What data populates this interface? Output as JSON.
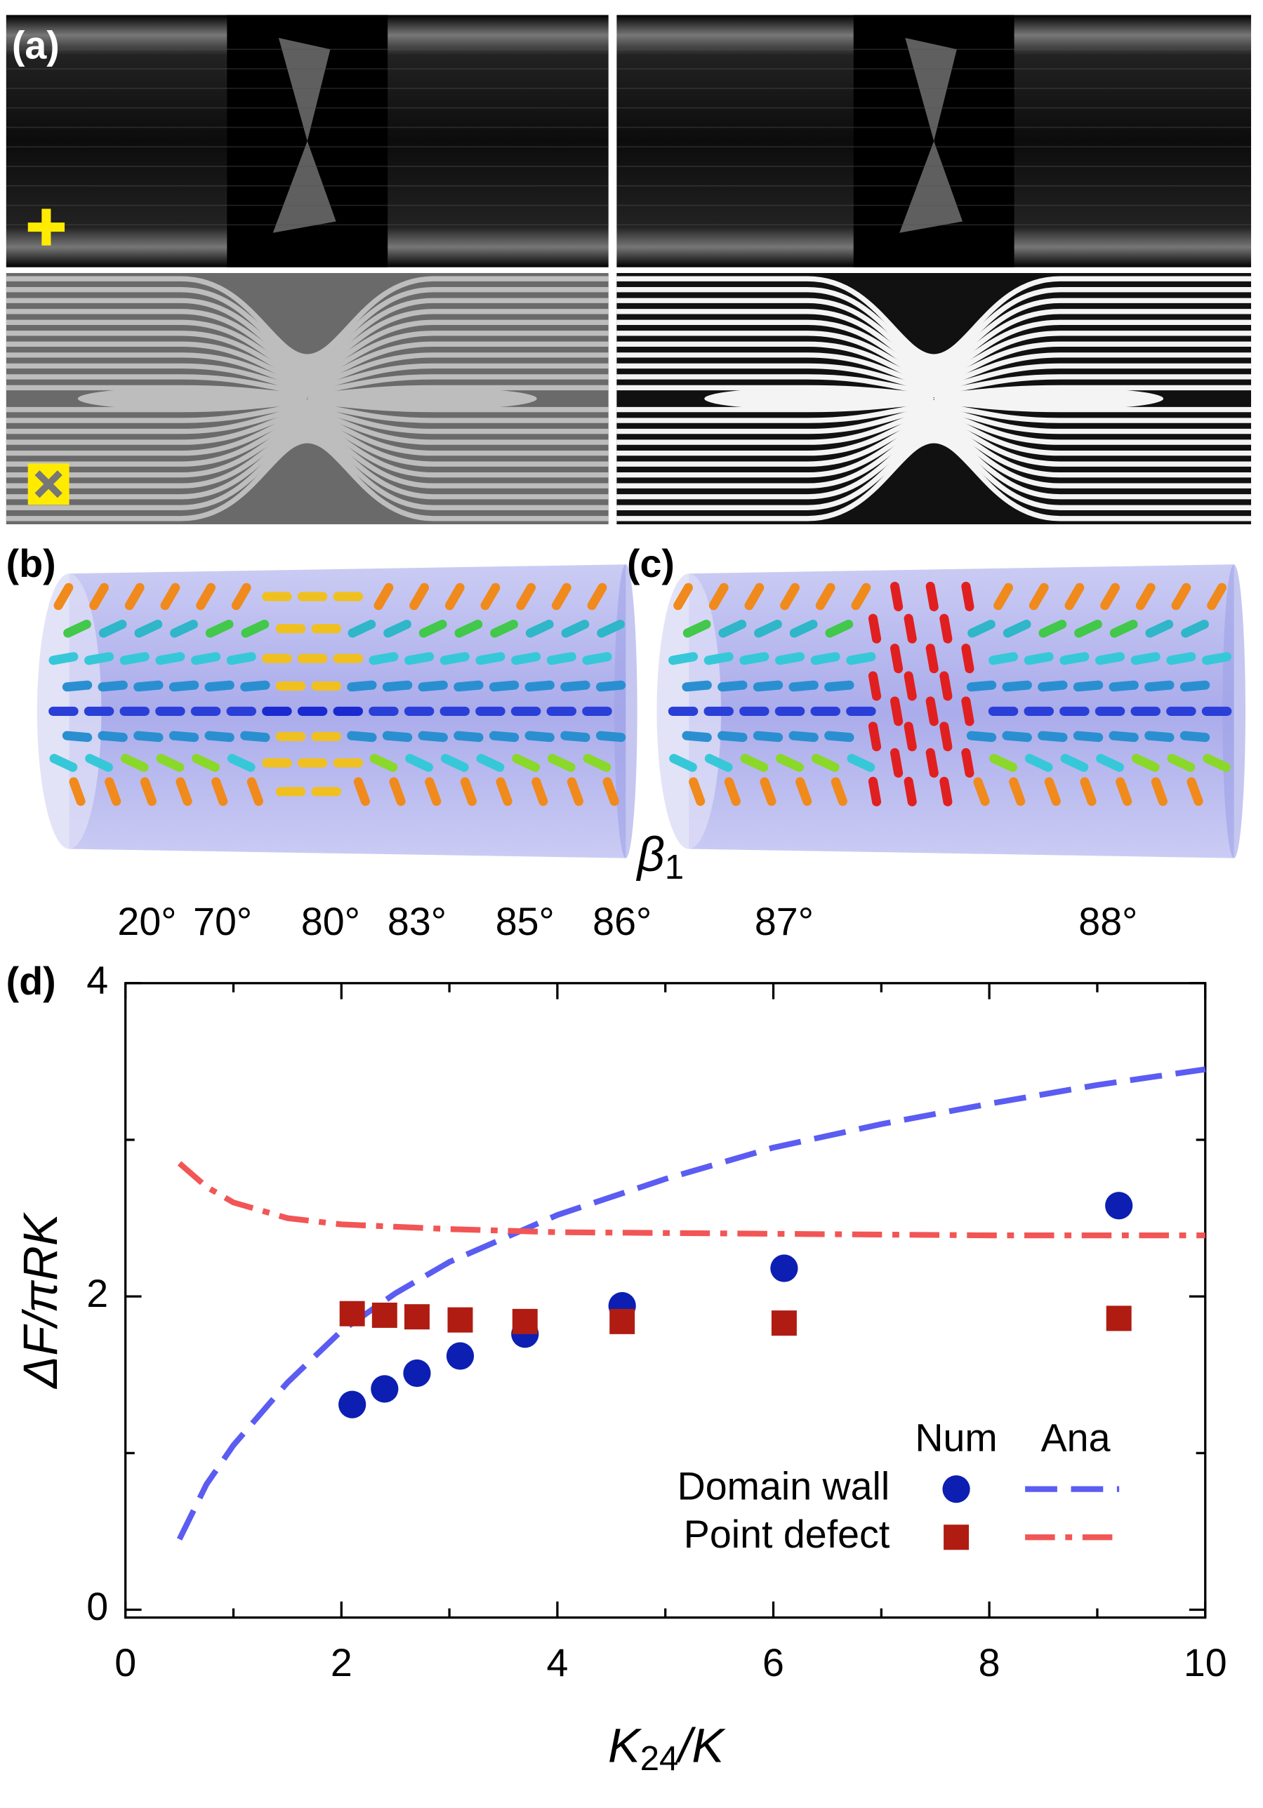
{
  "panels": {
    "a": "(a)",
    "b": "(b)",
    "c": "(c)",
    "d": "(d)"
  },
  "chart_data": {
    "type": "scatter",
    "xlabel": [
      "K",
      "24",
      "/K"
    ],
    "ylabel": "ΔF/πRK",
    "xlim": [
      0,
      10
    ],
    "ylim": [
      -0.05,
      4
    ],
    "xticks": [
      0,
      2,
      4,
      6,
      8,
      10
    ],
    "xminor": [
      1,
      3,
      5,
      7,
      9
    ],
    "yticks": [
      0,
      2,
      4
    ],
    "yminor": [
      1,
      3
    ],
    "top_axis_label": [
      "β",
      "1"
    ],
    "top_ticks": [
      {
        "value": 0.2,
        "label": "20°"
      },
      {
        "value": 0.9,
        "label": "70°"
      },
      {
        "value": 1.9,
        "label": "80°"
      },
      {
        "value": 2.7,
        "label": "83°"
      },
      {
        "value": 3.7,
        "label": "85°"
      },
      {
        "value": 4.6,
        "label": "86°"
      },
      {
        "value": 6.1,
        "label": "87°"
      },
      {
        "value": 9.1,
        "label": "88°"
      }
    ],
    "legend_columns": [
      "Num",
      "Ana"
    ],
    "series": [
      {
        "name": "Domain wall",
        "marker": "circle",
        "color": "#0c1fb2",
        "x": [
          2.1,
          2.4,
          2.7,
          3.1,
          3.7,
          4.6,
          6.1,
          9.2
        ],
        "values": [
          1.31,
          1.41,
          1.51,
          1.62,
          1.76,
          1.94,
          2.18,
          2.58
        ],
        "line": {
          "color": "#5b5cf2",
          "dash": "dash",
          "x": [
            0.5,
            0.75,
            1,
            1.5,
            2,
            2.5,
            3,
            4,
            5,
            6,
            7,
            8,
            9,
            10
          ],
          "values": [
            0.45,
            0.8,
            1.05,
            1.45,
            1.78,
            2.02,
            2.22,
            2.52,
            2.75,
            2.95,
            3.1,
            3.23,
            3.35,
            3.45
          ]
        }
      },
      {
        "name": "Point defect",
        "marker": "square",
        "color": "#b01c12",
        "x": [
          2.1,
          2.4,
          2.7,
          3.1,
          3.7,
          4.6,
          6.1,
          9.2
        ],
        "values": [
          1.89,
          1.88,
          1.87,
          1.85,
          1.84,
          1.84,
          1.83,
          1.86
        ],
        "line": {
          "color": "#f25555",
          "dash": "dashdot",
          "x": [
            0.5,
            0.75,
            1,
            1.5,
            2,
            3,
            4,
            6,
            8,
            10
          ],
          "values": [
            2.85,
            2.7,
            2.6,
            2.5,
            2.46,
            2.43,
            2.41,
            2.4,
            2.39,
            2.39
          ]
        }
      }
    ]
  }
}
